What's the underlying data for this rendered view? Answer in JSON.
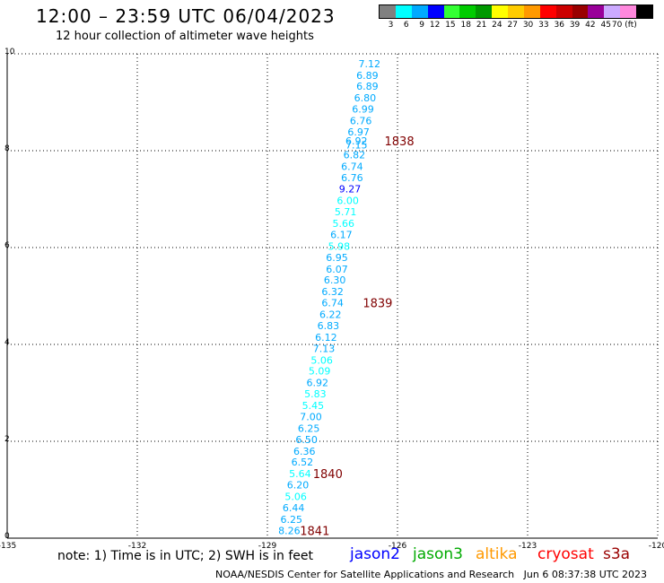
{
  "header": {
    "title": "12:00 – 23:59 UTC 06/04/2023",
    "subtitle": "12 hour collection of altimeter wave heights"
  },
  "legend": {
    "bins": [
      {
        "label": "3",
        "color": "#808080"
      },
      {
        "label": "6",
        "color": "#00ffff"
      },
      {
        "label": "9",
        "color": "#00aaff"
      },
      {
        "label": "12",
        "color": "#0000ff"
      },
      {
        "label": "15",
        "color": "#33ff33"
      },
      {
        "label": "18",
        "color": "#00cc00"
      },
      {
        "label": "21",
        "color": "#009900"
      },
      {
        "label": "24",
        "color": "#ffff00"
      },
      {
        "label": "27",
        "color": "#ffcc00"
      },
      {
        "label": "30",
        "color": "#ff9900"
      },
      {
        "label": "33",
        "color": "#ff0000"
      },
      {
        "label": "36",
        "color": "#cc0000"
      },
      {
        "label": "39",
        "color": "#990000"
      },
      {
        "label": "42",
        "color": "#990099"
      },
      {
        "label": "45",
        "color": "#ccaaff"
      },
      {
        "label": "70 (ft)",
        "color": "#ff88dd"
      }
    ],
    "last_color": "#000000"
  },
  "chart_data": {
    "type": "scatter",
    "title": "12:00 – 23:59 UTC 06/04/2023",
    "subtitle": "12 hour collection of altimeter wave heights",
    "xlim": [
      -135,
      -120
    ],
    "ylim": [
      0,
      10
    ],
    "x_ticks": [
      "-135",
      "-132",
      "-129",
      "-126",
      "-123",
      "-120"
    ],
    "y_ticks": [
      "0",
      "2",
      "4",
      "6",
      "8",
      "10"
    ],
    "grid": true,
    "points": [
      {
        "x": -126.9,
        "y": 9.8,
        "label": "7.12",
        "color": "#00aaff"
      },
      {
        "x": -126.95,
        "y": 9.56,
        "label": "6.89",
        "color": "#00aaff"
      },
      {
        "x": -126.95,
        "y": 9.33,
        "label": "6.89",
        "color": "#00aaff"
      },
      {
        "x": -127.0,
        "y": 9.09,
        "label": "6.80",
        "color": "#00aaff"
      },
      {
        "x": -127.05,
        "y": 8.86,
        "label": "6.99",
        "color": "#00aaff"
      },
      {
        "x": -127.1,
        "y": 8.62,
        "label": "6.76",
        "color": "#00aaff"
      },
      {
        "x": -127.15,
        "y": 8.39,
        "label": "6.97",
        "color": "#00aaff"
      },
      {
        "x": -127.2,
        "y": 8.2,
        "label": "6.92",
        "color": "#00aaff"
      },
      {
        "x": -127.2,
        "y": 8.12,
        "label": "7.15",
        "color": "#00aaff"
      },
      {
        "x": -127.25,
        "y": 7.92,
        "label": "6.82",
        "color": "#00aaff"
      },
      {
        "x": -127.3,
        "y": 7.68,
        "label": "6.74",
        "color": "#00aaff"
      },
      {
        "x": -127.3,
        "y": 7.44,
        "label": "6.76",
        "color": "#00aaff"
      },
      {
        "x": -127.35,
        "y": 7.21,
        "label": "9.27",
        "color": "#0000ff"
      },
      {
        "x": -127.4,
        "y": 6.97,
        "label": "6.00",
        "color": "#00ffff"
      },
      {
        "x": -127.45,
        "y": 6.74,
        "label": "5.71",
        "color": "#00ffff"
      },
      {
        "x": -127.5,
        "y": 6.5,
        "label": "5.66",
        "color": "#00ffff"
      },
      {
        "x": -127.55,
        "y": 6.27,
        "label": "6.17",
        "color": "#00aaff"
      },
      {
        "x": -127.6,
        "y": 6.03,
        "label": "5.98",
        "color": "#00ffff"
      },
      {
        "x": -127.65,
        "y": 5.8,
        "label": "6.95",
        "color": "#00aaff"
      },
      {
        "x": -127.65,
        "y": 5.56,
        "label": "6.07",
        "color": "#00aaff"
      },
      {
        "x": -127.7,
        "y": 5.33,
        "label": "6.30",
        "color": "#00aaff"
      },
      {
        "x": -127.75,
        "y": 5.09,
        "label": "6.32",
        "color": "#00aaff"
      },
      {
        "x": -127.75,
        "y": 4.86,
        "label": "6.74",
        "color": "#00aaff"
      },
      {
        "x": -127.8,
        "y": 4.62,
        "label": "6.22",
        "color": "#00aaff"
      },
      {
        "x": -127.85,
        "y": 4.39,
        "label": "6.83",
        "color": "#00aaff"
      },
      {
        "x": -127.9,
        "y": 4.15,
        "label": "6.12",
        "color": "#00aaff"
      },
      {
        "x": -127.95,
        "y": 3.92,
        "label": "7.13",
        "color": "#00aaff"
      },
      {
        "x": -128.0,
        "y": 3.68,
        "label": "5.06",
        "color": "#00ffff"
      },
      {
        "x": -128.05,
        "y": 3.45,
        "label": "5.09",
        "color": "#00ffff"
      },
      {
        "x": -128.1,
        "y": 3.21,
        "label": "6.92",
        "color": "#00aaff"
      },
      {
        "x": -128.15,
        "y": 2.98,
        "label": "5.83",
        "color": "#00ffff"
      },
      {
        "x": -128.2,
        "y": 2.74,
        "label": "5.45",
        "color": "#00ffff"
      },
      {
        "x": -128.25,
        "y": 2.51,
        "label": "7.00",
        "color": "#00aaff"
      },
      {
        "x": -128.3,
        "y": 2.27,
        "label": "6.25",
        "color": "#00aaff"
      },
      {
        "x": -128.35,
        "y": 2.04,
        "label": "6.50",
        "color": "#00aaff"
      },
      {
        "x": -128.4,
        "y": 1.8,
        "label": "6.36",
        "color": "#00aaff"
      },
      {
        "x": -128.45,
        "y": 1.57,
        "label": "6.52",
        "color": "#00aaff"
      },
      {
        "x": -128.5,
        "y": 1.33,
        "label": "5.64",
        "color": "#00ffff"
      },
      {
        "x": -128.55,
        "y": 1.1,
        "label": "6.20",
        "color": "#00aaff"
      },
      {
        "x": -128.6,
        "y": 0.86,
        "label": "5.06",
        "color": "#00ffff"
      },
      {
        "x": -128.65,
        "y": 0.63,
        "label": "6.44",
        "color": "#00aaff"
      },
      {
        "x": -128.7,
        "y": 0.39,
        "label": "6.25",
        "color": "#00aaff"
      },
      {
        "x": -128.75,
        "y": 0.16,
        "label": "8.26",
        "color": "#00aaff"
      }
    ],
    "time_labels": [
      {
        "x": -126.3,
        "y": 8.2,
        "label": "1838"
      },
      {
        "x": -126.8,
        "y": 4.86,
        "label": "1839"
      },
      {
        "x": -127.95,
        "y": 1.33,
        "label": "1840"
      },
      {
        "x": -128.25,
        "y": 0.16,
        "label": "1841"
      }
    ],
    "time_label_color": "#800000"
  },
  "footer": {
    "note": "note: 1) Time is in UTC; 2) SWH is in feet",
    "satellites": [
      {
        "name": "jason2",
        "color": "#0000ff"
      },
      {
        "name": "jason3",
        "color": "#00aa00"
      },
      {
        "name": "altika",
        "color": "#ff9900"
      },
      {
        "name": "cryosat",
        "color": "#ff0000"
      },
      {
        "name": "s3a",
        "color": "#990000"
      }
    ],
    "credit": "NOAA/NESDIS Center for Satellite Applications and Research",
    "timestamp": "Jun  6 08:37:38 UTC 2023"
  }
}
